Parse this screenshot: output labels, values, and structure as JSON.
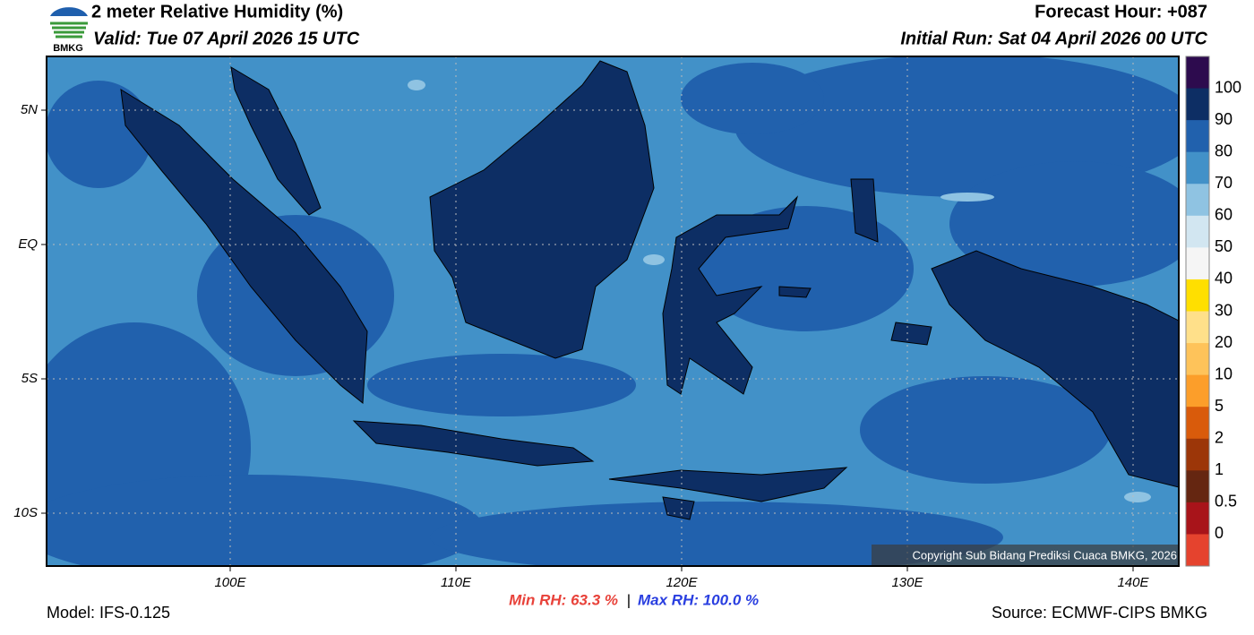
{
  "header": {
    "title": "2 meter Relative Humidity (%)",
    "valid": "Valid: Tue 07 April 2026 15 UTC",
    "forecast_hour": "Forecast Hour: +087",
    "initial_run": "Initial Run: Sat 04 April 2026 00 UTC",
    "logo": "BMKG"
  },
  "map": {
    "lat_labels": [
      "5N",
      "EQ",
      "5S",
      "10S"
    ],
    "lon_labels": [
      "100E",
      "110E",
      "120E",
      "130E",
      "140E"
    ],
    "copyright": "Copyright Sub Bidang Prediksi Cuaca BMKG, 2026"
  },
  "colorbar": {
    "labels": [
      "100",
      "90",
      "80",
      "70",
      "60",
      "50",
      "40",
      "30",
      "20",
      "10",
      "5",
      "2",
      "1",
      "0.5",
      "0"
    ],
    "colors": [
      "#2d0b4e",
      "#0d2e64",
      "#2161ad",
      "#4291c8",
      "#8fc3e2",
      "#d2e6f1",
      "#f5f5f5",
      "#ffdf00",
      "#ffe08a",
      "#fec35a",
      "#fc9e2a",
      "#d95b0b",
      "#9c3608",
      "#652611",
      "#a8141a",
      "#e5432e"
    ]
  },
  "footer": {
    "min_rh": "Min RH:  63.3 %",
    "separator": "|",
    "max_rh": "Max RH: 100.0 %",
    "model": "Model: IFS-0.125",
    "source": "Source: ECMWF-CIPS BMKG"
  }
}
